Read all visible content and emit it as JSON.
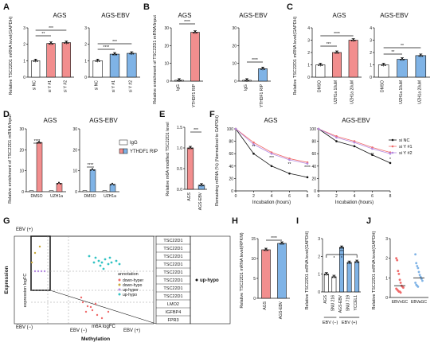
{
  "colors": {
    "red": "#f28e8e",
    "blue": "#7fb3e6",
    "white": "#ffffff",
    "cyan": "#34c4c4",
    "purple": "#b58ae0",
    "grey": "#9a9a9a",
    "pink": "#f06a6a",
    "black": "#111111",
    "gold": "#c9a93a"
  },
  "panel_letters": [
    "A",
    "B",
    "C",
    "D",
    "E",
    "F",
    "G",
    "H",
    "I",
    "J"
  ],
  "significance": {
    "p1": "*",
    "p2": "**",
    "p3": "***",
    "p4": "****"
  },
  "chart_data": [
    {
      "id": "A",
      "type": "bar",
      "titles": [
        "AGS",
        "AGS-EBV"
      ],
      "ylabel": "Relative TSC22D1 mRNA level(GAPDH)",
      "yticks": [
        "0",
        "1",
        "2",
        "3"
      ],
      "ylim": [
        0,
        3
      ],
      "groups": [
        {
          "title": "AGS",
          "categories": [
            "si NC",
            "si Y #1",
            "si Y #2"
          ],
          "values": [
            1.0,
            2.05,
            2.1
          ]
        },
        {
          "title": "AGS-EBV",
          "categories": [
            "si NC",
            "si Y #1",
            "si Y #2"
          ],
          "values": [
            1.0,
            1.4,
            1.45
          ]
        }
      ]
    },
    {
      "id": "B",
      "type": "bar",
      "titles": [
        "AGS",
        "AGS-EBV"
      ],
      "ylabel": "Relative enrichment of TSC22D1 mRNA/Input",
      "groups": [
        {
          "title": "AGS",
          "categories": [
            "IgG",
            "YTHDF1 RIP"
          ],
          "values": [
            0.5,
            27.5
          ],
          "yticks": [
            "0",
            "10",
            "20",
            "30"
          ],
          "ylim": [
            0,
            30
          ]
        },
        {
          "title": "AGS-EBV",
          "categories": [
            "IgG",
            "YTHDF1 RIP"
          ],
          "values": [
            0.5,
            7
          ],
          "yticks": [
            "0",
            "10",
            "20",
            "30"
          ],
          "ylim": [
            0,
            30
          ]
        }
      ]
    },
    {
      "id": "C",
      "type": "bar",
      "titles": [
        "AGS",
        "AGS-EBV"
      ],
      "ylabel": "Relative TSC22D1 mRNA level(GAPDH)",
      "yticks": [
        "0",
        "1",
        "2",
        "3",
        "4"
      ],
      "ylim": [
        0,
        4
      ],
      "groups": [
        {
          "title": "AGS",
          "categories": [
            "DMSO",
            "UZH1a 10uM",
            "UZH1a 20uM"
          ],
          "values": [
            1.0,
            2.0,
            3.0
          ]
        },
        {
          "title": "AGS-EBV",
          "categories": [
            "DMSO",
            "UZH1a 10uM",
            "UZH1a 20uM"
          ],
          "values": [
            1.0,
            1.45,
            1.75
          ]
        }
      ]
    },
    {
      "id": "D",
      "type": "bar",
      "titles": [
        "AGS",
        "AGS-EBV"
      ],
      "ylabel": "Relative enrichment of TSC22D1 mRNA/Input",
      "legend": [
        "IgG",
        "YTHDF1 RIP"
      ],
      "yticks": [
        "0",
        "10",
        "20",
        "30"
      ],
      "ylim": [
        0,
        30
      ],
      "groups": [
        {
          "title": "AGS",
          "categories": [
            "DMSO",
            "UZH1a"
          ],
          "igg": [
            0.5,
            0.5
          ],
          "rip": [
            23.5,
            4
          ]
        },
        {
          "title": "AGS-EBV",
          "categories": [
            "DMSO",
            "UZH1a"
          ],
          "igg": [
            0.5,
            0.5
          ],
          "rip": [
            10.5,
            3.5
          ]
        }
      ]
    },
    {
      "id": "E",
      "type": "bar",
      "ylabel": "Relative m6A modified TSC22D1 level",
      "yticks": [
        "0.0",
        "0.5",
        "1.0",
        "1.5"
      ],
      "ylim": [
        0,
        1.5
      ],
      "categories": [
        "AGS",
        "AGS-EBV"
      ],
      "values": [
        1.0,
        0.1
      ]
    },
    {
      "id": "F",
      "type": "line",
      "titles": [
        "AGS",
        "AGS-EBV"
      ],
      "ylabel": "Remaining mRNA (%) (Normalized to GAPDH)",
      "xlabel": "Incubation (hours)",
      "x": [
        0,
        2,
        4,
        6,
        8
      ],
      "xticks": [
        "0",
        "2",
        "4",
        "6",
        "8"
      ],
      "yticks": [
        "0",
        "20",
        "40",
        "60",
        "80",
        "100"
      ],
      "ylim": [
        0,
        100
      ],
      "legend": [
        "si NC",
        "si Y #1",
        "si Y #2"
      ],
      "groups": [
        {
          "title": "AGS",
          "series": [
            {
              "name": "si NC",
              "values": [
                100,
                60,
                40,
                28,
                22
              ]
            },
            {
              "name": "si Y #1",
              "values": [
                100,
                78,
                62,
                52,
                46
              ]
            },
            {
              "name": "si Y #2",
              "values": [
                100,
                75,
                60,
                50,
                44
              ]
            }
          ]
        },
        {
          "title": "AGS-EBV",
          "series": [
            {
              "name": "si NC",
              "values": [
                100,
                80,
                72,
                58,
                45
              ]
            },
            {
              "name": "si Y #1",
              "values": [
                100,
                88,
                80,
                70,
                62
              ]
            },
            {
              "name": "si Y #2",
              "values": [
                100,
                86,
                78,
                68,
                60
              ]
            }
          ]
        }
      ]
    },
    {
      "id": "G",
      "type": "scatter",
      "xlabel": "m6A logFC",
      "ylabel": "expression logFC",
      "outer_xlabel": "Methylation",
      "outer_ylabel": "Expression",
      "corner_labels": [
        "EBV (+)",
        "EBV (−)",
        "EBV (−)",
        "EBV (+)"
      ],
      "legend_title": "annotation",
      "legend": [
        "down-hyper",
        "down-hypo",
        "up-hyper",
        "up-hypo"
      ],
      "highlight": "up-hypo",
      "gene_list": [
        "TSC22D1",
        "TSC22D1",
        "TSC22D1",
        "TSC22D1",
        "TSC22D1",
        "TSC22D1",
        "TSC22D1",
        "TSC22D1",
        "LMO2",
        "IGFBP4",
        "FPR3"
      ]
    },
    {
      "id": "H",
      "type": "bar",
      "ylabel": "Relative TSC22D1 mRNA level(RPKM)",
      "yticks": [
        "0",
        "5",
        "10",
        "15"
      ],
      "ylim": [
        0,
        15
      ],
      "categories": [
        "AGS",
        "AGS-EBV"
      ],
      "values": [
        12.2,
        13.8
      ]
    },
    {
      "id": "I",
      "type": "bar",
      "ylabel": "Relative TSC22D1 mRNA level(GAPDH)",
      "yticks": [
        "0",
        "1",
        "2",
        "3"
      ],
      "ylim": [
        0,
        3
      ],
      "categories": [
        "AGS",
        "SNU 216",
        "AGS-EBV",
        "SNU 719",
        "YCCEL1"
      ],
      "values": [
        1.0,
        0.85,
        2.5,
        1.65,
        1.7
      ],
      "group_labels": [
        "EBV (−)",
        "EBV (+)"
      ]
    },
    {
      "id": "J",
      "type": "scatter",
      "ylabel": "Relative TSC22D1 mRNA level(GAPDH)",
      "yticks": [
        "0",
        "1",
        "2",
        "3"
      ],
      "ylim": [
        0,
        3
      ],
      "categories": [
        "EBVnGC",
        "EBVaGC"
      ],
      "points": [
        {
          "category": "EBVnGC",
          "values": [
            2.0,
            1.9,
            1.35,
            1.2,
            0.9,
            0.75,
            0.6,
            0.55,
            0.5,
            0.45,
            0.4,
            0.35,
            0.3,
            0.3,
            0.25
          ]
        },
        {
          "category": "EBVaGC",
          "values": [
            2.2,
            1.75,
            1.6,
            1.5,
            1.3,
            1.15,
            1.05,
            0.95,
            0.85,
            0.75,
            0.65,
            0.6,
            0.55
          ]
        }
      ],
      "medians": [
        0.6,
        1.0
      ]
    }
  ]
}
